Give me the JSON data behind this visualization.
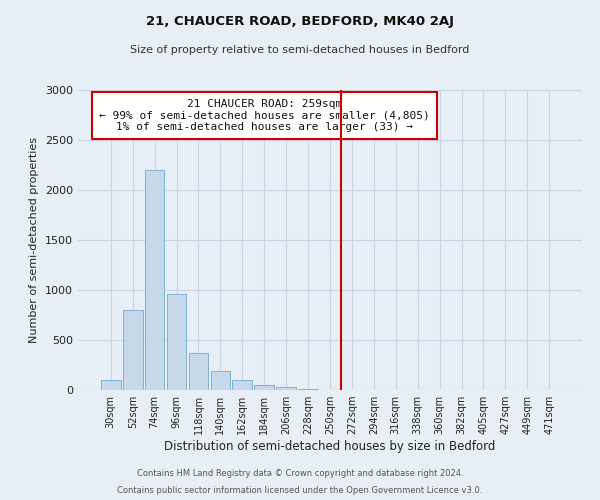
{
  "title": "21, CHAUCER ROAD, BEDFORD, MK40 2AJ",
  "subtitle": "Size of property relative to semi-detached houses in Bedford",
  "xlabel": "Distribution of semi-detached houses by size in Bedford",
  "ylabel": "Number of semi-detached properties",
  "footer_line1": "Contains HM Land Registry data © Crown copyright and database right 2024.",
  "footer_line2": "Contains public sector information licensed under the Open Government Licence v3.0.",
  "bar_labels": [
    "30sqm",
    "52sqm",
    "74sqm",
    "96sqm",
    "118sqm",
    "140sqm",
    "162sqm",
    "184sqm",
    "206sqm",
    "228sqm",
    "250sqm",
    "272sqm",
    "294sqm",
    "316sqm",
    "338sqm",
    "360sqm",
    "382sqm",
    "405sqm",
    "427sqm",
    "449sqm",
    "471sqm"
  ],
  "bar_values": [
    100,
    800,
    2200,
    960,
    370,
    190,
    100,
    55,
    30,
    10,
    3,
    0,
    0,
    0,
    0,
    0,
    0,
    0,
    0,
    0,
    0
  ],
  "bar_color": "#c6d9ea",
  "bar_edge_color": "#7fb3d3",
  "ylim": [
    0,
    3000
  ],
  "yticks": [
    0,
    500,
    1000,
    1500,
    2000,
    2500,
    3000
  ],
  "vline_x": 10.5,
  "vline_color": "#cc0000",
  "annotation_title": "21 CHAUCER ROAD: 259sqm",
  "annotation_line1": "← 99% of semi-detached houses are smaller (4,805)",
  "annotation_line2": "1% of semi-detached houses are larger (33) →",
  "annotation_box_facecolor": "#ffffff",
  "annotation_box_edgecolor": "#cc0000",
  "grid_color": "#c8d4e3",
  "background_color": "#e8eef5"
}
